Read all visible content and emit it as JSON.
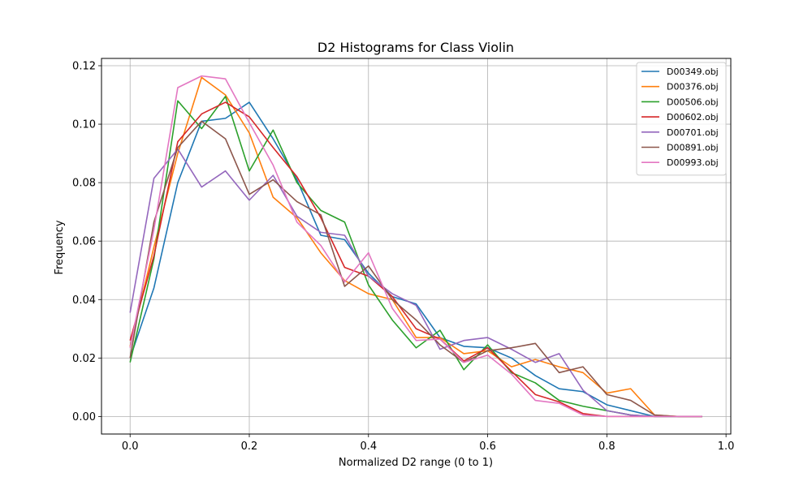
{
  "chart_data": {
    "type": "line",
    "title": "D2 Histograms for Class Violin",
    "xlabel": "Normalized D2 range (0 to 1)",
    "ylabel": "Frequency",
    "xlim": [
      -0.048,
      1.008
    ],
    "ylim": [
      -0.006,
      0.1225
    ],
    "xticks": [
      0.0,
      0.2,
      0.4,
      0.6,
      0.8,
      1.0
    ],
    "xtick_labels": [
      "0.0",
      "0.2",
      "0.4",
      "0.6",
      "0.8",
      "1.0"
    ],
    "yticks": [
      0.0,
      0.02,
      0.04,
      0.06,
      0.08,
      0.1,
      0.12
    ],
    "ytick_labels": [
      "0.00",
      "0.02",
      "0.04",
      "0.06",
      "0.08",
      "0.10",
      "0.12"
    ],
    "grid": true,
    "legend_position": "top-right",
    "x": [
      0.0,
      0.04,
      0.08,
      0.12,
      0.16,
      0.2,
      0.24,
      0.28,
      0.32,
      0.36,
      0.4,
      0.44,
      0.48,
      0.52,
      0.56,
      0.6,
      0.64,
      0.68,
      0.72,
      0.76,
      0.8,
      0.84,
      0.88,
      0.92,
      0.96
    ],
    "series": [
      {
        "name": "D00349.obj",
        "color": "#1f77b4",
        "values": [
          0.02,
          0.044,
          0.08,
          0.101,
          0.102,
          0.1075,
          0.095,
          0.081,
          0.062,
          0.0605,
          0.049,
          0.041,
          0.0385,
          0.027,
          0.024,
          0.0235,
          0.02,
          0.014,
          0.0095,
          0.0085,
          0.004,
          0.002,
          0.0,
          0.0,
          0.0
        ]
      },
      {
        "name": "D00376.obj",
        "color": "#ff7f0e",
        "values": [
          0.024,
          0.058,
          0.09,
          0.116,
          0.11,
          0.097,
          0.075,
          0.068,
          0.056,
          0.0465,
          0.042,
          0.04,
          0.027,
          0.027,
          0.0215,
          0.0225,
          0.017,
          0.0195,
          0.017,
          0.015,
          0.008,
          0.0095,
          0.0005,
          0.0,
          0.0
        ]
      },
      {
        "name": "D00506.obj",
        "color": "#2ca02c",
        "values": [
          0.0185,
          0.054,
          0.108,
          0.0985,
          0.1095,
          0.084,
          0.098,
          0.08,
          0.0705,
          0.0665,
          0.045,
          0.033,
          0.0235,
          0.0295,
          0.016,
          0.0245,
          0.015,
          0.0115,
          0.0055,
          0.0035,
          0.002,
          0.0005,
          0.0,
          0.0,
          0.0
        ]
      },
      {
        "name": "D00602.obj",
        "color": "#d62728",
        "values": [
          0.026,
          0.055,
          0.094,
          0.1035,
          0.1075,
          0.1025,
          0.092,
          0.082,
          0.068,
          0.051,
          0.048,
          0.041,
          0.03,
          0.0265,
          0.019,
          0.0235,
          0.0155,
          0.0075,
          0.005,
          0.001,
          0.0,
          0.0,
          0.0,
          0.0,
          0.0
        ]
      },
      {
        "name": "D00701.obj",
        "color": "#9467bd",
        "values": [
          0.0355,
          0.0815,
          0.0915,
          0.0785,
          0.084,
          0.074,
          0.0825,
          0.0685,
          0.063,
          0.062,
          0.048,
          0.042,
          0.038,
          0.023,
          0.026,
          0.027,
          0.023,
          0.0185,
          0.0215,
          0.009,
          0.002,
          0.0005,
          0.0,
          0.0,
          0.0
        ]
      },
      {
        "name": "D00891.obj",
        "color": "#8c564b",
        "values": [
          0.02,
          0.0665,
          0.092,
          0.101,
          0.095,
          0.076,
          0.081,
          0.0735,
          0.069,
          0.0445,
          0.0515,
          0.04,
          0.033,
          0.0245,
          0.0185,
          0.0225,
          0.0235,
          0.025,
          0.015,
          0.017,
          0.0075,
          0.0055,
          0.0005,
          0.0,
          0.0
        ]
      },
      {
        "name": "D00993.obj",
        "color": "#e377c2",
        "values": [
          0.0235,
          0.064,
          0.1125,
          0.1165,
          0.1155,
          0.1005,
          0.086,
          0.0665,
          0.0585,
          0.046,
          0.056,
          0.037,
          0.026,
          0.0265,
          0.0185,
          0.021,
          0.0145,
          0.0055,
          0.0045,
          0.0005,
          0.0,
          0.0,
          0.0,
          0.0,
          0.0
        ]
      }
    ]
  }
}
